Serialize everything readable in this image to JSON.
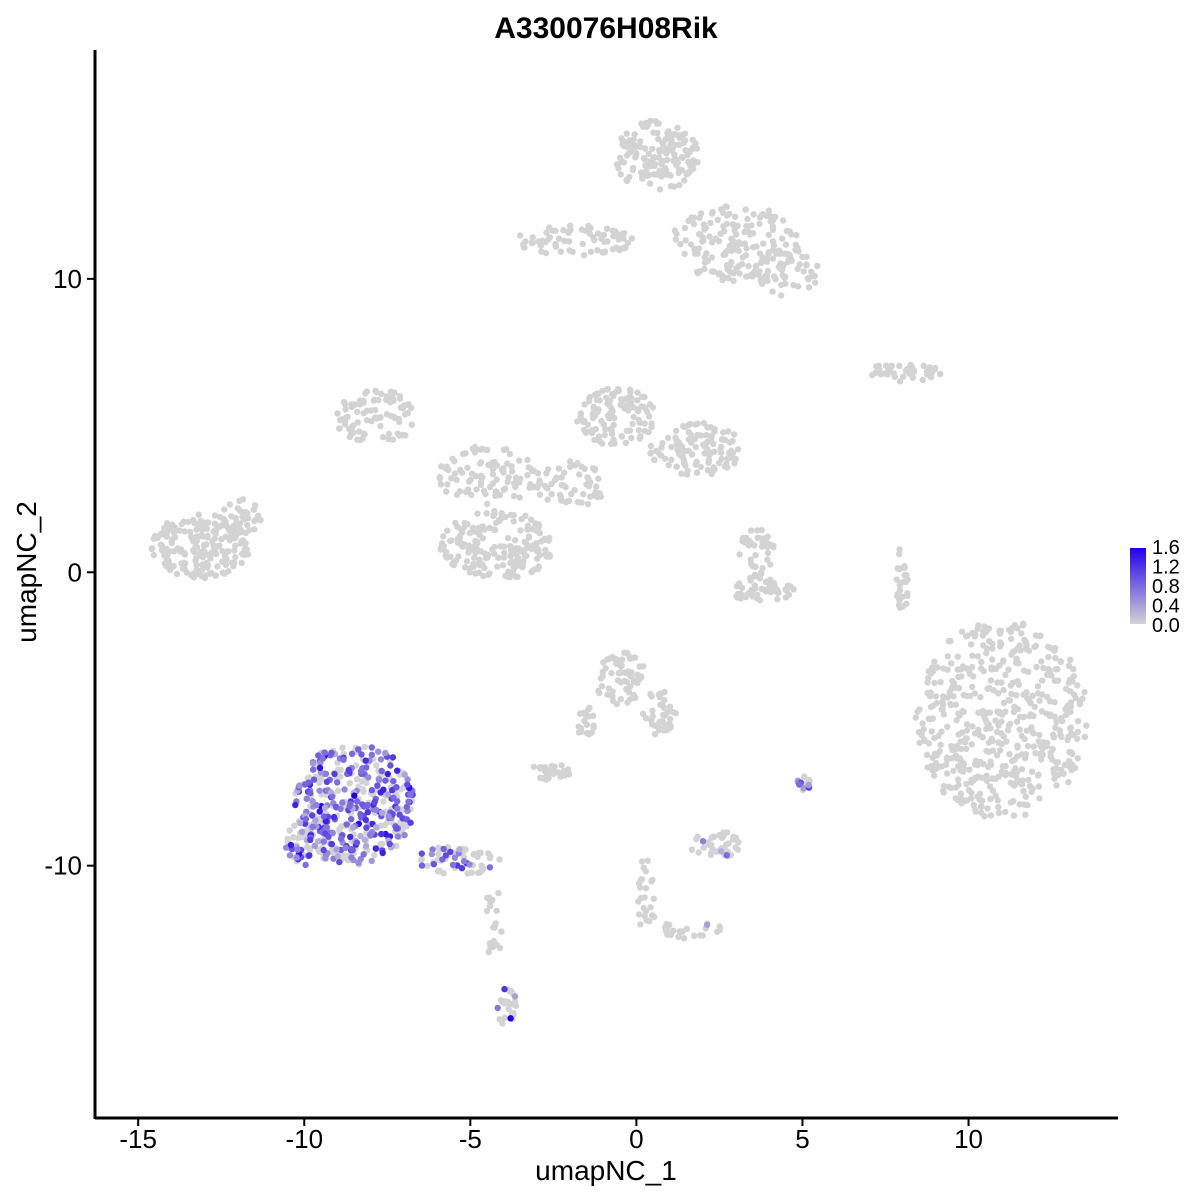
{
  "chart_data": {
    "type": "scatter",
    "title": "A330076H08Rik",
    "xlabel": "umapNC_1",
    "ylabel": "umapNC_2",
    "xlim": [
      -16.3,
      14.5
    ],
    "ylim": [
      -18.6,
      17.8
    ],
    "x_ticks": [
      {
        "value": -15,
        "label": "-15"
      },
      {
        "value": -10,
        "label": "-10"
      },
      {
        "value": -5,
        "label": "-5"
      },
      {
        "value": 0,
        "label": "0"
      },
      {
        "value": 5,
        "label": "5"
      },
      {
        "value": 10,
        "label": "10"
      }
    ],
    "y_ticks": [
      {
        "value": -10,
        "label": "-10"
      },
      {
        "value": 0,
        "label": "0"
      },
      {
        "value": 10,
        "label": "10"
      }
    ],
    "grid": false,
    "color_scale": {
      "low_color": "#d3d3d3",
      "high_color": "#2400ee",
      "range": [
        0.0,
        1.7
      ],
      "legend_ticks": [
        "0.0",
        "0.4",
        "0.8",
        "1.2",
        "1.6"
      ],
      "legend_placement": "right"
    },
    "clusters": [
      {
        "cx": 11.0,
        "cy": -5.0,
        "rx": 2.6,
        "ry": 3.4,
        "n": 520,
        "expr": 0
      },
      {
        "cx": 0.6,
        "cy": 14.2,
        "rx": 1.3,
        "ry": 1.2,
        "n": 160,
        "expr": 0
      },
      {
        "cx": 3.0,
        "cy": 11.2,
        "rx": 2.0,
        "ry": 1.3,
        "n": 170,
        "expr": 0
      },
      {
        "cx": 4.5,
        "cy": 10.2,
        "rx": 1.0,
        "ry": 0.8,
        "n": 50,
        "expr": 0
      },
      {
        "cx": -1.8,
        "cy": 11.3,
        "rx": 1.8,
        "ry": 0.55,
        "n": 70,
        "expr": 0
      },
      {
        "cx": -13.1,
        "cy": 0.9,
        "rx": 1.5,
        "ry": 1.1,
        "n": 190,
        "expr": 0
      },
      {
        "cx": -11.9,
        "cy": 1.9,
        "rx": 0.6,
        "ry": 0.6,
        "n": 25,
        "expr": 0
      },
      {
        "cx": -4.2,
        "cy": 0.9,
        "rx": 1.7,
        "ry": 1.2,
        "n": 190,
        "expr": 0
      },
      {
        "cx": -7.8,
        "cy": 5.3,
        "rx": 1.3,
        "ry": 0.9,
        "n": 90,
        "expr": 0
      },
      {
        "cx": -4.5,
        "cy": 3.3,
        "rx": 1.5,
        "ry": 1.0,
        "n": 90,
        "expr": 0
      },
      {
        "cx": -0.6,
        "cy": 5.3,
        "rx": 1.2,
        "ry": 1.0,
        "n": 110,
        "expr": 0
      },
      {
        "cx": 1.8,
        "cy": 4.2,
        "rx": 1.4,
        "ry": 0.9,
        "n": 110,
        "expr": 0
      },
      {
        "cx": -2.0,
        "cy": 3.0,
        "rx": 1.1,
        "ry": 0.8,
        "n": 60,
        "expr": 0
      },
      {
        "cx": 8.0,
        "cy": 6.8,
        "rx": 1.2,
        "ry": 0.3,
        "n": 40,
        "expr": 0
      },
      {
        "cx": 3.6,
        "cy": 0.6,
        "rx": 0.6,
        "ry": 0.9,
        "n": 40,
        "expr": 0
      },
      {
        "cx": 3.8,
        "cy": -0.6,
        "rx": 1.0,
        "ry": 0.4,
        "n": 50,
        "expr": 0
      },
      {
        "cx": 8.0,
        "cy": -0.2,
        "rx": 0.2,
        "ry": 1.2,
        "n": 30,
        "expr": 0
      },
      {
        "cx": -0.5,
        "cy": -3.6,
        "rx": 0.8,
        "ry": 0.9,
        "n": 70,
        "expr": 0
      },
      {
        "cx": 0.7,
        "cy": -4.8,
        "rx": 0.5,
        "ry": 0.8,
        "n": 40,
        "expr": 0
      },
      {
        "cx": -2.6,
        "cy": -6.8,
        "rx": 0.6,
        "ry": 0.3,
        "n": 30,
        "expr": 0
      },
      {
        "cx": -1.5,
        "cy": -5.3,
        "rx": 0.3,
        "ry": 0.9,
        "n": 20,
        "expr": 0
      },
      {
        "cx": 2.4,
        "cy": -9.3,
        "rx": 0.8,
        "ry": 0.5,
        "n": 40,
        "expr": 0.05
      },
      {
        "cx": 0.3,
        "cy": -11.0,
        "rx": 0.3,
        "ry": 1.3,
        "n": 25,
        "expr": 0.05
      },
      {
        "cx": 1.6,
        "cy": -12.2,
        "rx": 1.0,
        "ry": 0.3,
        "n": 25,
        "expr": 0.05
      },
      {
        "cx": -3.9,
        "cy": -14.8,
        "rx": 0.3,
        "ry": 0.7,
        "n": 25,
        "expr": 0.15
      },
      {
        "cx": -4.3,
        "cy": -11.8,
        "rx": 0.3,
        "ry": 1.4,
        "n": 20,
        "expr": 0
      },
      {
        "cx": -8.5,
        "cy": -7.9,
        "rx": 1.8,
        "ry": 2.1,
        "n": 420,
        "expr": 0.55
      },
      {
        "cx": -9.8,
        "cy": -9.2,
        "rx": 0.8,
        "ry": 0.8,
        "n": 70,
        "expr": 0.5
      },
      {
        "cx": -5.3,
        "cy": -9.8,
        "rx": 1.3,
        "ry": 0.5,
        "n": 60,
        "expr": 0.3
      },
      {
        "cx": 5.0,
        "cy": -7.2,
        "rx": 0.25,
        "ry": 0.25,
        "n": 15,
        "expr": 0.5
      }
    ]
  }
}
